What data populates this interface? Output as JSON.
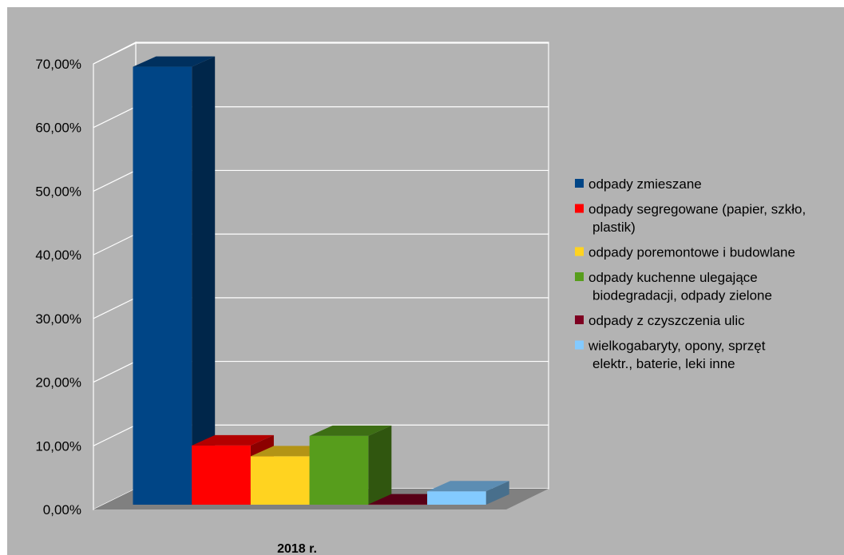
{
  "chart_data": {
    "type": "bar",
    "categories": [
      "2018 r."
    ],
    "y_tick_labels": [
      "0,00%",
      "10,00%",
      "20,00%",
      "30,00%",
      "40,00%",
      "50,00%",
      "60,00%",
      "70,00%"
    ],
    "ylim": [
      0,
      70
    ],
    "grid": true,
    "legend_position": "right",
    "style": "3d",
    "series": [
      {
        "name": "odpady zmieszane",
        "value": 68.8,
        "color": "#004586"
      },
      {
        "name": "odpady segregowane (papier, szkło, plastik)",
        "value": 9.3,
        "color": "#ff0000"
      },
      {
        "name": "odpady poremontowe i budowlane",
        "value": 7.6,
        "color": "#ffd320"
      },
      {
        "name": "odpady kuchenne ulegające biodegradacji, odpady zielone",
        "value": 10.8,
        "color": "#579d1c"
      },
      {
        "name": "odpady z czyszczenia ulic",
        "value": 0.05,
        "color": "#7e0021"
      },
      {
        "name": "wielkogabaryty, opony, sprzęt elektr., baterie, leki inne",
        "value": 2.1,
        "color": "#83caff"
      }
    ]
  }
}
